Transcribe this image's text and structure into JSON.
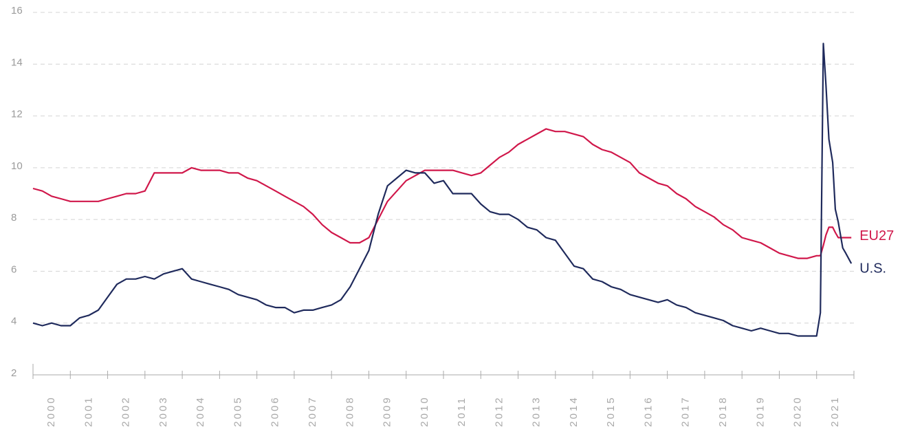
{
  "chart_data": {
    "type": "line",
    "x": [
      2000,
      2000.25,
      2000.5,
      2000.75,
      2001,
      2001.25,
      2001.5,
      2001.75,
      2002,
      2002.25,
      2002.5,
      2002.75,
      2003,
      2003.25,
      2003.5,
      2003.75,
      2004,
      2004.25,
      2004.5,
      2004.75,
      2005,
      2005.25,
      2005.5,
      2005.75,
      2006,
      2006.25,
      2006.5,
      2006.75,
      2007,
      2007.25,
      2007.5,
      2007.75,
      2008,
      2008.25,
      2008.5,
      2008.75,
      2009,
      2009.25,
      2009.5,
      2009.75,
      2010,
      2010.25,
      2010.5,
      2010.75,
      2011,
      2011.25,
      2011.5,
      2011.75,
      2012,
      2012.25,
      2012.5,
      2012.75,
      2013,
      2013.25,
      2013.5,
      2013.75,
      2014,
      2014.25,
      2014.5,
      2014.75,
      2015,
      2015.25,
      2015.5,
      2015.75,
      2016,
      2016.25,
      2016.5,
      2016.75,
      2017,
      2017.25,
      2017.5,
      2017.75,
      2018,
      2018.25,
      2018.5,
      2018.75,
      2019,
      2019.25,
      2019.5,
      2019.75,
      2020,
      2020.25,
      2020.5,
      2020.75,
      2021,
      2021.1,
      2021.18,
      2021.25,
      2021.33,
      2021.43,
      2021.5,
      2021.58,
      2021.7,
      2021.78,
      2021.93
    ],
    "series": [
      {
        "name": "EU27",
        "color": "#d0174a",
        "values": [
          9.2,
          9.1,
          8.9,
          8.8,
          8.7,
          8.7,
          8.7,
          8.7,
          8.8,
          8.9,
          9.0,
          9.0,
          9.1,
          9.8,
          9.8,
          9.8,
          9.8,
          10.0,
          9.9,
          9.9,
          9.9,
          9.8,
          9.8,
          9.6,
          9.5,
          9.3,
          9.1,
          8.9,
          8.7,
          8.5,
          8.2,
          7.8,
          7.5,
          7.3,
          7.1,
          7.1,
          7.3,
          8.0,
          8.7,
          9.1,
          9.5,
          9.7,
          9.9,
          9.9,
          9.9,
          9.9,
          9.8,
          9.7,
          9.8,
          10.1,
          10.4,
          10.6,
          10.9,
          11.1,
          11.3,
          11.5,
          11.4,
          11.4,
          11.3,
          11.2,
          10.9,
          10.7,
          10.6,
          10.4,
          10.2,
          9.8,
          9.6,
          9.4,
          9.3,
          9.0,
          8.8,
          8.5,
          8.3,
          8.1,
          7.8,
          7.6,
          7.3,
          7.2,
          7.1,
          6.9,
          6.7,
          6.6,
          6.5,
          6.5,
          6.6,
          6.6,
          7.0,
          7.4,
          7.7,
          7.7,
          7.5,
          7.3,
          7.3,
          7.3,
          7.3
        ]
      },
      {
        "name": "U.S.",
        "color": "#1f2a5c",
        "values": [
          4.0,
          3.9,
          4.0,
          3.9,
          3.9,
          4.2,
          4.3,
          4.5,
          5.0,
          5.5,
          5.7,
          5.7,
          5.8,
          5.7,
          5.9,
          6.0,
          6.1,
          5.7,
          5.6,
          5.5,
          5.4,
          5.3,
          5.1,
          5.0,
          4.9,
          4.7,
          4.6,
          4.6,
          4.4,
          4.5,
          4.5,
          4.6,
          4.7,
          4.9,
          5.4,
          6.1,
          6.8,
          8.2,
          9.3,
          9.6,
          9.9,
          9.8,
          9.8,
          9.4,
          9.5,
          9.0,
          9.0,
          9.0,
          8.6,
          8.3,
          8.2,
          8.2,
          8.0,
          7.7,
          7.6,
          7.3,
          7.2,
          6.7,
          6.2,
          6.1,
          5.7,
          5.6,
          5.4,
          5.3,
          5.1,
          5.0,
          4.9,
          4.8,
          4.9,
          4.7,
          4.6,
          4.4,
          4.3,
          4.2,
          4.1,
          3.9,
          3.8,
          3.7,
          3.8,
          3.7,
          3.6,
          3.6,
          3.5,
          3.5,
          3.5,
          4.4,
          14.8,
          13.2,
          11.1,
          10.2,
          8.4,
          7.9,
          6.9,
          6.7,
          6.3
        ]
      }
    ],
    "xlim": [
      2000,
      2022
    ],
    "xticks": [
      2000,
      2001,
      2002,
      2003,
      2004,
      2005,
      2006,
      2007,
      2008,
      2009,
      2010,
      2011,
      2012,
      2013,
      2014,
      2015,
      2016,
      2017,
      2018,
      2019,
      2020,
      2021
    ],
    "ylim": [
      2,
      16
    ],
    "yticks": [
      2,
      4,
      6,
      8,
      10,
      12,
      14,
      16
    ],
    "grid": true
  }
}
